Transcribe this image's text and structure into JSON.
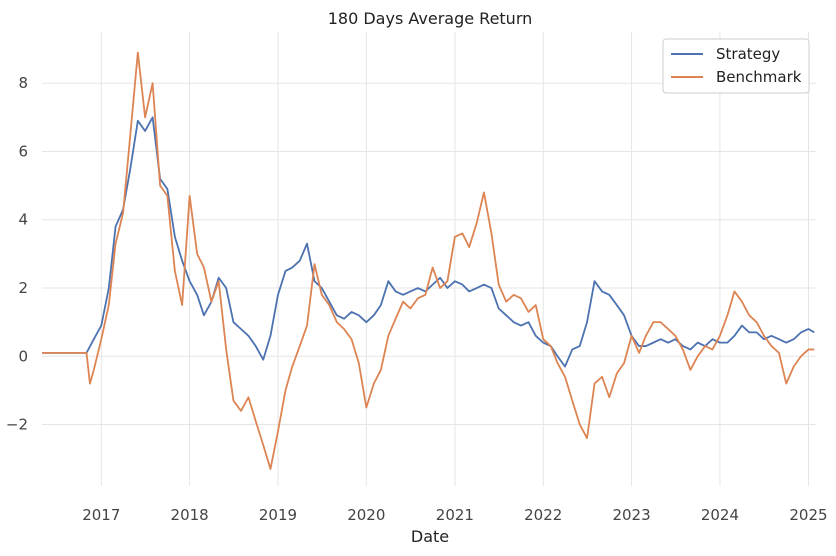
{
  "chart_data": {
    "type": "line",
    "title": "180 Days Average Return",
    "xlabel": "Date",
    "ylabel": "",
    "xlim": [
      "2016-05-01",
      "2025-02-01"
    ],
    "ylim": [
      -3.8,
      9.5
    ],
    "x_ticks": [
      "2017",
      "2018",
      "2019",
      "2020",
      "2021",
      "2022",
      "2023",
      "2024",
      "2025"
    ],
    "y_ticks": [
      -2,
      0,
      2,
      4,
      6,
      8
    ],
    "y_tick_labels": [
      "−2",
      "0",
      "2",
      "4",
      "6",
      "8"
    ],
    "grid": true,
    "legend": "top-right",
    "series": [
      {
        "name": "Strategy",
        "color": "#4c72b0",
        "points": [
          [
            "2016-05-01",
            0.1
          ],
          [
            "2016-11-01",
            0.1
          ],
          [
            "2016-12-01",
            0.5
          ],
          [
            "2017-01-01",
            0.9
          ],
          [
            "2017-02-01",
            2.0
          ],
          [
            "2017-03-01",
            3.8
          ],
          [
            "2017-04-01",
            4.3
          ],
          [
            "2017-05-01",
            5.5
          ],
          [
            "2017-06-01",
            6.9
          ],
          [
            "2017-07-01",
            6.6
          ],
          [
            "2017-08-01",
            7.0
          ],
          [
            "2017-09-01",
            5.2
          ],
          [
            "2017-10-01",
            4.9
          ],
          [
            "2017-11-01",
            3.5
          ],
          [
            "2017-12-01",
            2.8
          ],
          [
            "2018-01-01",
            2.2
          ],
          [
            "2018-02-01",
            1.8
          ],
          [
            "2018-03-01",
            1.2
          ],
          [
            "2018-04-01",
            1.6
          ],
          [
            "2018-05-01",
            2.3
          ],
          [
            "2018-06-01",
            2.0
          ],
          [
            "2018-07-01",
            1.0
          ],
          [
            "2018-08-01",
            0.8
          ],
          [
            "2018-09-01",
            0.6
          ],
          [
            "2018-10-01",
            0.3
          ],
          [
            "2018-11-01",
            -0.1
          ],
          [
            "2018-12-01",
            0.6
          ],
          [
            "2019-01-01",
            1.8
          ],
          [
            "2019-02-01",
            2.5
          ],
          [
            "2019-03-01",
            2.6
          ],
          [
            "2019-04-01",
            2.8
          ],
          [
            "2019-05-01",
            3.3
          ],
          [
            "2019-06-01",
            2.2
          ],
          [
            "2019-07-01",
            2.0
          ],
          [
            "2019-08-01",
            1.6
          ],
          [
            "2019-09-01",
            1.2
          ],
          [
            "2019-10-01",
            1.1
          ],
          [
            "2019-11-01",
            1.3
          ],
          [
            "2019-12-01",
            1.2
          ],
          [
            "2020-01-01",
            1.0
          ],
          [
            "2020-02-01",
            1.2
          ],
          [
            "2020-03-01",
            1.5
          ],
          [
            "2020-04-01",
            2.2
          ],
          [
            "2020-05-01",
            1.9
          ],
          [
            "2020-06-01",
            1.8
          ],
          [
            "2020-07-01",
            1.9
          ],
          [
            "2020-08-01",
            2.0
          ],
          [
            "2020-09-01",
            1.9
          ],
          [
            "2020-10-01",
            2.1
          ],
          [
            "2020-11-01",
            2.3
          ],
          [
            "2020-12-01",
            2.0
          ],
          [
            "2021-01-01",
            2.2
          ],
          [
            "2021-02-01",
            2.1
          ],
          [
            "2021-03-01",
            1.9
          ],
          [
            "2021-04-01",
            2.0
          ],
          [
            "2021-05-01",
            2.1
          ],
          [
            "2021-06-01",
            2.0
          ],
          [
            "2021-07-01",
            1.4
          ],
          [
            "2021-08-01",
            1.2
          ],
          [
            "2021-09-01",
            1.0
          ],
          [
            "2021-10-01",
            0.9
          ],
          [
            "2021-11-01",
            1.0
          ],
          [
            "2021-12-01",
            0.6
          ],
          [
            "2022-01-01",
            0.4
          ],
          [
            "2022-02-01",
            0.3
          ],
          [
            "2022-03-01",
            0.0
          ],
          [
            "2022-04-01",
            -0.3
          ],
          [
            "2022-05-01",
            0.2
          ],
          [
            "2022-06-01",
            0.3
          ],
          [
            "2022-07-01",
            1.0
          ],
          [
            "2022-08-01",
            2.2
          ],
          [
            "2022-09-01",
            1.9
          ],
          [
            "2022-10-01",
            1.8
          ],
          [
            "2022-11-01",
            1.5
          ],
          [
            "2022-12-01",
            1.2
          ],
          [
            "2023-01-01",
            0.6
          ],
          [
            "2023-02-01",
            0.3
          ],
          [
            "2023-03-01",
            0.3
          ],
          [
            "2023-04-01",
            0.4
          ],
          [
            "2023-05-01",
            0.5
          ],
          [
            "2023-06-01",
            0.4
          ],
          [
            "2023-07-01",
            0.5
          ],
          [
            "2023-08-01",
            0.3
          ],
          [
            "2023-09-01",
            0.2
          ],
          [
            "2023-10-01",
            0.4
          ],
          [
            "2023-11-01",
            0.3
          ],
          [
            "2023-12-01",
            0.5
          ],
          [
            "2024-01-01",
            0.4
          ],
          [
            "2024-02-01",
            0.4
          ],
          [
            "2024-03-01",
            0.6
          ],
          [
            "2024-04-01",
            0.9
          ],
          [
            "2024-05-01",
            0.7
          ],
          [
            "2024-06-01",
            0.7
          ],
          [
            "2024-07-01",
            0.5
          ],
          [
            "2024-08-01",
            0.6
          ],
          [
            "2024-09-01",
            0.5
          ],
          [
            "2024-10-01",
            0.4
          ],
          [
            "2024-11-01",
            0.5
          ],
          [
            "2024-12-01",
            0.7
          ],
          [
            "2025-01-01",
            0.8
          ],
          [
            "2025-01-25",
            0.7
          ]
        ]
      },
      {
        "name": "Benchmark",
        "color": "#dd8452",
        "points": [
          [
            "2016-05-01",
            0.1
          ],
          [
            "2016-11-01",
            0.1
          ],
          [
            "2016-11-15",
            -0.8
          ],
          [
            "2016-12-01",
            -0.4
          ],
          [
            "2017-01-01",
            0.5
          ],
          [
            "2017-02-01",
            1.5
          ],
          [
            "2017-03-01",
            3.3
          ],
          [
            "2017-04-01",
            4.2
          ],
          [
            "2017-05-01",
            6.5
          ],
          [
            "2017-06-01",
            8.9
          ],
          [
            "2017-07-01",
            7.0
          ],
          [
            "2017-08-01",
            8.0
          ],
          [
            "2017-09-01",
            5.0
          ],
          [
            "2017-10-01",
            4.7
          ],
          [
            "2017-11-01",
            2.5
          ],
          [
            "2017-12-01",
            1.5
          ],
          [
            "2018-01-01",
            4.7
          ],
          [
            "2018-02-01",
            3.0
          ],
          [
            "2018-03-01",
            2.6
          ],
          [
            "2018-04-01",
            1.6
          ],
          [
            "2018-05-01",
            2.2
          ],
          [
            "2018-06-01",
            0.2
          ],
          [
            "2018-07-01",
            -1.3
          ],
          [
            "2018-08-01",
            -1.6
          ],
          [
            "2018-09-01",
            -1.2
          ],
          [
            "2018-10-01",
            -1.9
          ],
          [
            "2018-11-01",
            -2.6
          ],
          [
            "2018-12-01",
            -3.3
          ],
          [
            "2019-01-01",
            -2.2
          ],
          [
            "2019-02-01",
            -1.0
          ],
          [
            "2019-03-01",
            -0.3
          ],
          [
            "2019-04-01",
            0.3
          ],
          [
            "2019-05-01",
            0.9
          ],
          [
            "2019-06-01",
            2.7
          ],
          [
            "2019-07-01",
            1.8
          ],
          [
            "2019-08-01",
            1.5
          ],
          [
            "2019-09-01",
            1.0
          ],
          [
            "2019-10-01",
            0.8
          ],
          [
            "2019-11-01",
            0.5
          ],
          [
            "2019-12-01",
            -0.2
          ],
          [
            "2020-01-01",
            -1.5
          ],
          [
            "2020-02-01",
            -0.8
          ],
          [
            "2020-03-01",
            -0.4
          ],
          [
            "2020-04-01",
            0.6
          ],
          [
            "2020-05-01",
            1.1
          ],
          [
            "2020-06-01",
            1.6
          ],
          [
            "2020-07-01",
            1.4
          ],
          [
            "2020-08-01",
            1.7
          ],
          [
            "2020-09-01",
            1.8
          ],
          [
            "2020-10-01",
            2.6
          ],
          [
            "2020-11-01",
            2.0
          ],
          [
            "2020-12-01",
            2.2
          ],
          [
            "2021-01-01",
            3.5
          ],
          [
            "2021-02-01",
            3.6
          ],
          [
            "2021-03-01",
            3.2
          ],
          [
            "2021-04-01",
            3.9
          ],
          [
            "2021-05-01",
            4.8
          ],
          [
            "2021-06-01",
            3.6
          ],
          [
            "2021-07-01",
            2.1
          ],
          [
            "2021-08-01",
            1.6
          ],
          [
            "2021-09-01",
            1.8
          ],
          [
            "2021-10-01",
            1.7
          ],
          [
            "2021-11-01",
            1.3
          ],
          [
            "2021-12-01",
            1.5
          ],
          [
            "2022-01-01",
            0.5
          ],
          [
            "2022-02-01",
            0.3
          ],
          [
            "2022-03-01",
            -0.2
          ],
          [
            "2022-04-01",
            -0.6
          ],
          [
            "2022-05-01",
            -1.3
          ],
          [
            "2022-06-01",
            -2.0
          ],
          [
            "2022-07-01",
            -2.4
          ],
          [
            "2022-08-01",
            -0.8
          ],
          [
            "2022-09-01",
            -0.6
          ],
          [
            "2022-10-01",
            -1.2
          ],
          [
            "2022-11-01",
            -0.5
          ],
          [
            "2022-12-01",
            -0.2
          ],
          [
            "2023-01-01",
            0.6
          ],
          [
            "2023-02-01",
            0.1
          ],
          [
            "2023-03-01",
            0.6
          ],
          [
            "2023-04-01",
            1.0
          ],
          [
            "2023-05-01",
            1.0
          ],
          [
            "2023-06-01",
            0.8
          ],
          [
            "2023-07-01",
            0.6
          ],
          [
            "2023-08-01",
            0.2
          ],
          [
            "2023-09-01",
            -0.4
          ],
          [
            "2023-10-01",
            0.0
          ],
          [
            "2023-11-01",
            0.3
          ],
          [
            "2023-12-01",
            0.2
          ],
          [
            "2024-01-01",
            0.6
          ],
          [
            "2024-02-01",
            1.2
          ],
          [
            "2024-03-01",
            1.9
          ],
          [
            "2024-04-01",
            1.6
          ],
          [
            "2024-05-01",
            1.2
          ],
          [
            "2024-06-01",
            1.0
          ],
          [
            "2024-07-01",
            0.6
          ],
          [
            "2024-08-01",
            0.3
          ],
          [
            "2024-09-01",
            0.1
          ],
          [
            "2024-10-01",
            -0.8
          ],
          [
            "2024-11-01",
            -0.3
          ],
          [
            "2024-12-01",
            0.0
          ],
          [
            "2025-01-01",
            0.2
          ],
          [
            "2025-01-25",
            0.2
          ]
        ]
      }
    ]
  }
}
